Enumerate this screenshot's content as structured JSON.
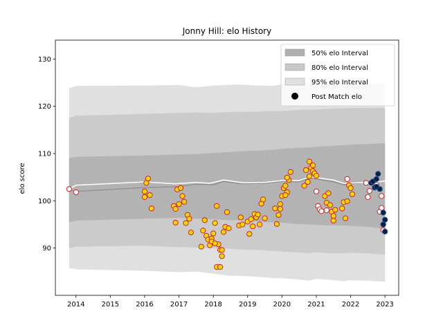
{
  "chart_data": {
    "type": "scatter",
    "title": "Jonny Hill: elo History",
    "xlabel": "",
    "ylabel": "elo score",
    "xlim": [
      2013.4,
      2023.4
    ],
    "ylim": [
      80,
      134
    ],
    "x_ticks": [
      2014,
      2015,
      2016,
      2017,
      2018,
      2019,
      2020,
      2021,
      2022,
      2023
    ],
    "x_tick_labels": [
      "2014",
      "2015",
      "2016",
      "2017",
      "2018",
      "2019",
      "2020",
      "2021",
      "2022",
      "2023"
    ],
    "y_ticks": [
      90,
      100,
      110,
      120,
      130
    ],
    "y_tick_labels": [
      "90",
      "100",
      "110",
      "120",
      "130"
    ],
    "grid": false,
    "legend_position": "top-right",
    "legend": [
      {
        "label": "50% elo Interval",
        "kind": "patch",
        "color": "#b0b0b0"
      },
      {
        "label": "80% elo Interval",
        "kind": "patch",
        "color": "#c8c8c8"
      },
      {
        "label": "95% elo Interval",
        "kind": "patch",
        "color": "#e0e0e0"
      },
      {
        "label": "Post Match elo",
        "kind": "marker",
        "color": "#000000"
      }
    ],
    "bands": {
      "x": [
        2013.8,
        2014.0,
        2016.0,
        2017.0,
        2017.5,
        2018.0,
        2018.4,
        2018.8,
        2019.3,
        2019.7,
        2020.0,
        2020.4,
        2020.8,
        2021.0,
        2021.4,
        2021.8,
        2022.0,
        2022.5,
        2023.0
      ],
      "mean": [
        102.5,
        103.5,
        104.2,
        103.7,
        104.0,
        103.8,
        104.3,
        103.9,
        104.0,
        104.3,
        104.5,
        104.3,
        105.1,
        104.8,
        104.2,
        103.7,
        103.9,
        104.1,
        104.3
      ],
      "p95_low": [
        85.8,
        85.5,
        85.2,
        84.9,
        85.0,
        84.6,
        84.2,
        84.1,
        83.9,
        83.7,
        83.6,
        83.4,
        83.1,
        83.5,
        83.3,
        83.0,
        83.2,
        83.1,
        82.9
      ],
      "p95_high": [
        123.8,
        124.3,
        124.4,
        124.5,
        124.0,
        124.4,
        124.5,
        124.6,
        124.4,
        124.3,
        124.6,
        124.8,
        125.0,
        124.3,
        124.6,
        124.6,
        124.4,
        124.6,
        124.8
      ],
      "p80_low": [
        90.0,
        90.3,
        90.5,
        90.2,
        90.1,
        90.0,
        89.9,
        89.7,
        89.6,
        89.4,
        89.3,
        89.1,
        88.9,
        89.1,
        88.9,
        88.9,
        89.0,
        88.9,
        88.6
      ],
      "p80_high": [
        117.5,
        118.0,
        118.4,
        118.6,
        118.7,
        118.6,
        118.8,
        118.8,
        118.9,
        119.0,
        119.0,
        119.2,
        119.3,
        119.3,
        119.5,
        119.6,
        119.6,
        119.7,
        119.7
      ],
      "p50_low": [
        95.5,
        95.8,
        96.2,
        96.4,
        96.2,
        96.1,
        95.9,
        95.9,
        95.6,
        95.4,
        95.4,
        95.1,
        95.0,
        94.9,
        94.8,
        94.8,
        94.7,
        94.5,
        94.1
      ],
      "p50_high": [
        109.0,
        109.3,
        109.6,
        109.8,
        109.9,
        110.1,
        110.3,
        110.5,
        110.6,
        110.8,
        111.0,
        111.2,
        111.3,
        111.4,
        111.6,
        111.8,
        111.9,
        112.0,
        112.2
      ]
    },
    "mean_line": {
      "x": [
        2013.8,
        2014.0,
        2016.0,
        2016.9,
        2017.5,
        2017.9,
        2018.3,
        2018.5,
        2018.9,
        2019.5,
        2020.0,
        2020.5,
        2020.8,
        2021.0,
        2021.5,
        2021.8,
        2022.2,
        2022.8,
        2023.0
      ],
      "y": [
        102.5,
        103.3,
        104.0,
        103.6,
        103.9,
        103.7,
        104.4,
        104.2,
        103.8,
        103.9,
        104.3,
        104.3,
        105.0,
        104.9,
        104.4,
        103.7,
        103.8,
        104.0,
        104.2
      ]
    },
    "pre_line": {
      "x": [
        2013.8,
        2014.0,
        2016.0,
        2017.0,
        2017.5,
        2018.0,
        2018.3,
        2018.8,
        2019.5,
        2020.0,
        2020.5,
        2020.8,
        2021.0,
        2021.5,
        2021.8,
        2022.0,
        2022.3
      ],
      "y": [
        102.3,
        102.0,
        102.8,
        103.0,
        103.5,
        103.4,
        104.1,
        103.6,
        103.7,
        104.1,
        104.0,
        104.8,
        104.6,
        104.0,
        103.4,
        103.6,
        103.7
      ]
    },
    "series": [
      {
        "name": "Post Match elo",
        "style": "yellow",
        "points": [
          [
            2016.0,
            102.0
          ],
          [
            2016.05,
            103.8
          ],
          [
            2016.1,
            104.7
          ],
          [
            2016.0,
            100.8
          ],
          [
            2016.15,
            101.2
          ],
          [
            2016.2,
            98.4
          ],
          [
            2016.85,
            98.9
          ],
          [
            2016.9,
            95.4
          ],
          [
            2016.95,
            102.4
          ],
          [
            2017.0,
            99.3
          ],
          [
            2017.05,
            102.7
          ],
          [
            2017.1,
            101.0
          ],
          [
            2017.15,
            99.8
          ],
          [
            2017.2,
            95.3
          ],
          [
            2017.25,
            97.0
          ],
          [
            2017.3,
            96.2
          ],
          [
            2017.35,
            93.3
          ],
          [
            2016.9,
            98.3
          ],
          [
            2017.65,
            90.3
          ],
          [
            2017.7,
            93.7
          ],
          [
            2017.75,
            95.9
          ],
          [
            2017.8,
            92.6
          ],
          [
            2017.85,
            91.8
          ],
          [
            2017.9,
            90.6
          ],
          [
            2017.95,
            92.0
          ],
          [
            2018.0,
            93.1
          ],
          [
            2018.05,
            95.3
          ],
          [
            2018.1,
            98.9
          ],
          [
            2018.15,
            90.8
          ],
          [
            2018.2,
            89.6
          ],
          [
            2018.25,
            88.3
          ],
          [
            2018.1,
            86.0
          ],
          [
            2018.2,
            86.0
          ],
          [
            2018.3,
            93.4
          ],
          [
            2018.35,
            94.5
          ],
          [
            2018.4,
            97.6
          ],
          [
            2018.45,
            94.2
          ],
          [
            2017.95,
            91.4
          ],
          [
            2018.05,
            91.0
          ],
          [
            2018.25,
            89.6
          ],
          [
            2018.75,
            94.8
          ],
          [
            2018.8,
            96.5
          ],
          [
            2018.85,
            95.0
          ],
          [
            2019.0,
            95.6
          ],
          [
            2019.05,
            93.0
          ],
          [
            2019.1,
            96.1
          ],
          [
            2019.15,
            94.6
          ],
          [
            2019.2,
            97.2
          ],
          [
            2019.25,
            96.5
          ],
          [
            2019.3,
            97.1
          ],
          [
            2019.35,
            95.0
          ],
          [
            2019.4,
            99.4
          ],
          [
            2019.45,
            100.3
          ],
          [
            2019.5,
            96.3
          ],
          [
            2019.8,
            98.4
          ],
          [
            2019.85,
            95.1
          ],
          [
            2019.9,
            97.0
          ],
          [
            2019.95,
            99.3
          ],
          [
            2019.95,
            98.3
          ],
          [
            2020.0,
            101.0
          ],
          [
            2020.05,
            102.7
          ],
          [
            2020.1,
            103.2
          ],
          [
            2020.15,
            101.8
          ],
          [
            2020.2,
            104.4
          ],
          [
            2020.25,
            106.1
          ],
          [
            2020.1,
            101.2
          ],
          [
            2020.15,
            104.9
          ],
          [
            2020.65,
            103.2
          ],
          [
            2020.7,
            106.5
          ],
          [
            2020.75,
            104.0
          ],
          [
            2020.8,
            105.2
          ],
          [
            2020.8,
            108.3
          ],
          [
            2020.85,
            107.0
          ],
          [
            2020.9,
            107.5
          ],
          [
            2020.9,
            106.3
          ],
          [
            2020.95,
            105.8
          ],
          [
            2021.0,
            105.3
          ],
          [
            2021.25,
            101.0
          ],
          [
            2021.3,
            99.6
          ],
          [
            2021.35,
            101.6
          ],
          [
            2021.4,
            99.1
          ],
          [
            2021.45,
            97.7
          ],
          [
            2021.5,
            96.8
          ],
          [
            2021.5,
            95.8
          ],
          [
            2021.55,
            98.1
          ],
          [
            2021.75,
            98.4
          ],
          [
            2021.8,
            99.7
          ],
          [
            2021.85,
            96.3
          ],
          [
            2021.9,
            99.9
          ],
          [
            2021.95,
            103.3
          ],
          [
            2022.0,
            102.7
          ],
          [
            2022.05,
            101.4
          ]
        ]
      },
      {
        "name": "Post Match elo",
        "style": "white",
        "points": [
          [
            2013.8,
            102.5
          ],
          [
            2014.0,
            101.8
          ],
          [
            2021.0,
            102.0
          ],
          [
            2021.05,
            98.9
          ],
          [
            2021.1,
            98.2
          ],
          [
            2021.15,
            97.8
          ],
          [
            2021.3,
            98.0
          ],
          [
            2021.9,
            104.6
          ],
          [
            2022.45,
            103.8
          ],
          [
            2022.5,
            100.8
          ],
          [
            2022.55,
            102.1
          ],
          [
            2022.75,
            103.4
          ],
          [
            2022.85,
            97.7
          ],
          [
            2022.9,
            101.0
          ],
          [
            2022.9,
            98.5
          ],
          [
            2022.95,
            95.0
          ],
          [
            2022.95,
            93.8
          ]
        ]
      },
      {
        "name": "Post Match elo",
        "style": "navy",
        "points": [
          [
            2022.6,
            103.8
          ],
          [
            2022.65,
            104.1
          ],
          [
            2022.7,
            102.8
          ],
          [
            2022.75,
            104.6
          ],
          [
            2022.8,
            105.7
          ],
          [
            2022.85,
            102.5
          ],
          [
            2022.95,
            97.5
          ],
          [
            2023.0,
            96.0
          ],
          [
            2022.95,
            95.0
          ],
          [
            2023.0,
            93.5
          ],
          [
            2022.75,
            103.0
          ]
        ]
      }
    ],
    "colors": {
      "p95": "#e0e0e0",
      "p80": "#cbcbcb",
      "p50": "#b3b3b3",
      "mean_line": "#ffffff",
      "pre_line": "#8c8c8c",
      "yellow_fill": "#ffd700",
      "yellow_edge": "#cc2222",
      "white_fill": "#ffffff",
      "white_edge": "#cc2222",
      "navy_fill": "#0b1f44",
      "navy_edge": "#1f4e8a"
    }
  }
}
